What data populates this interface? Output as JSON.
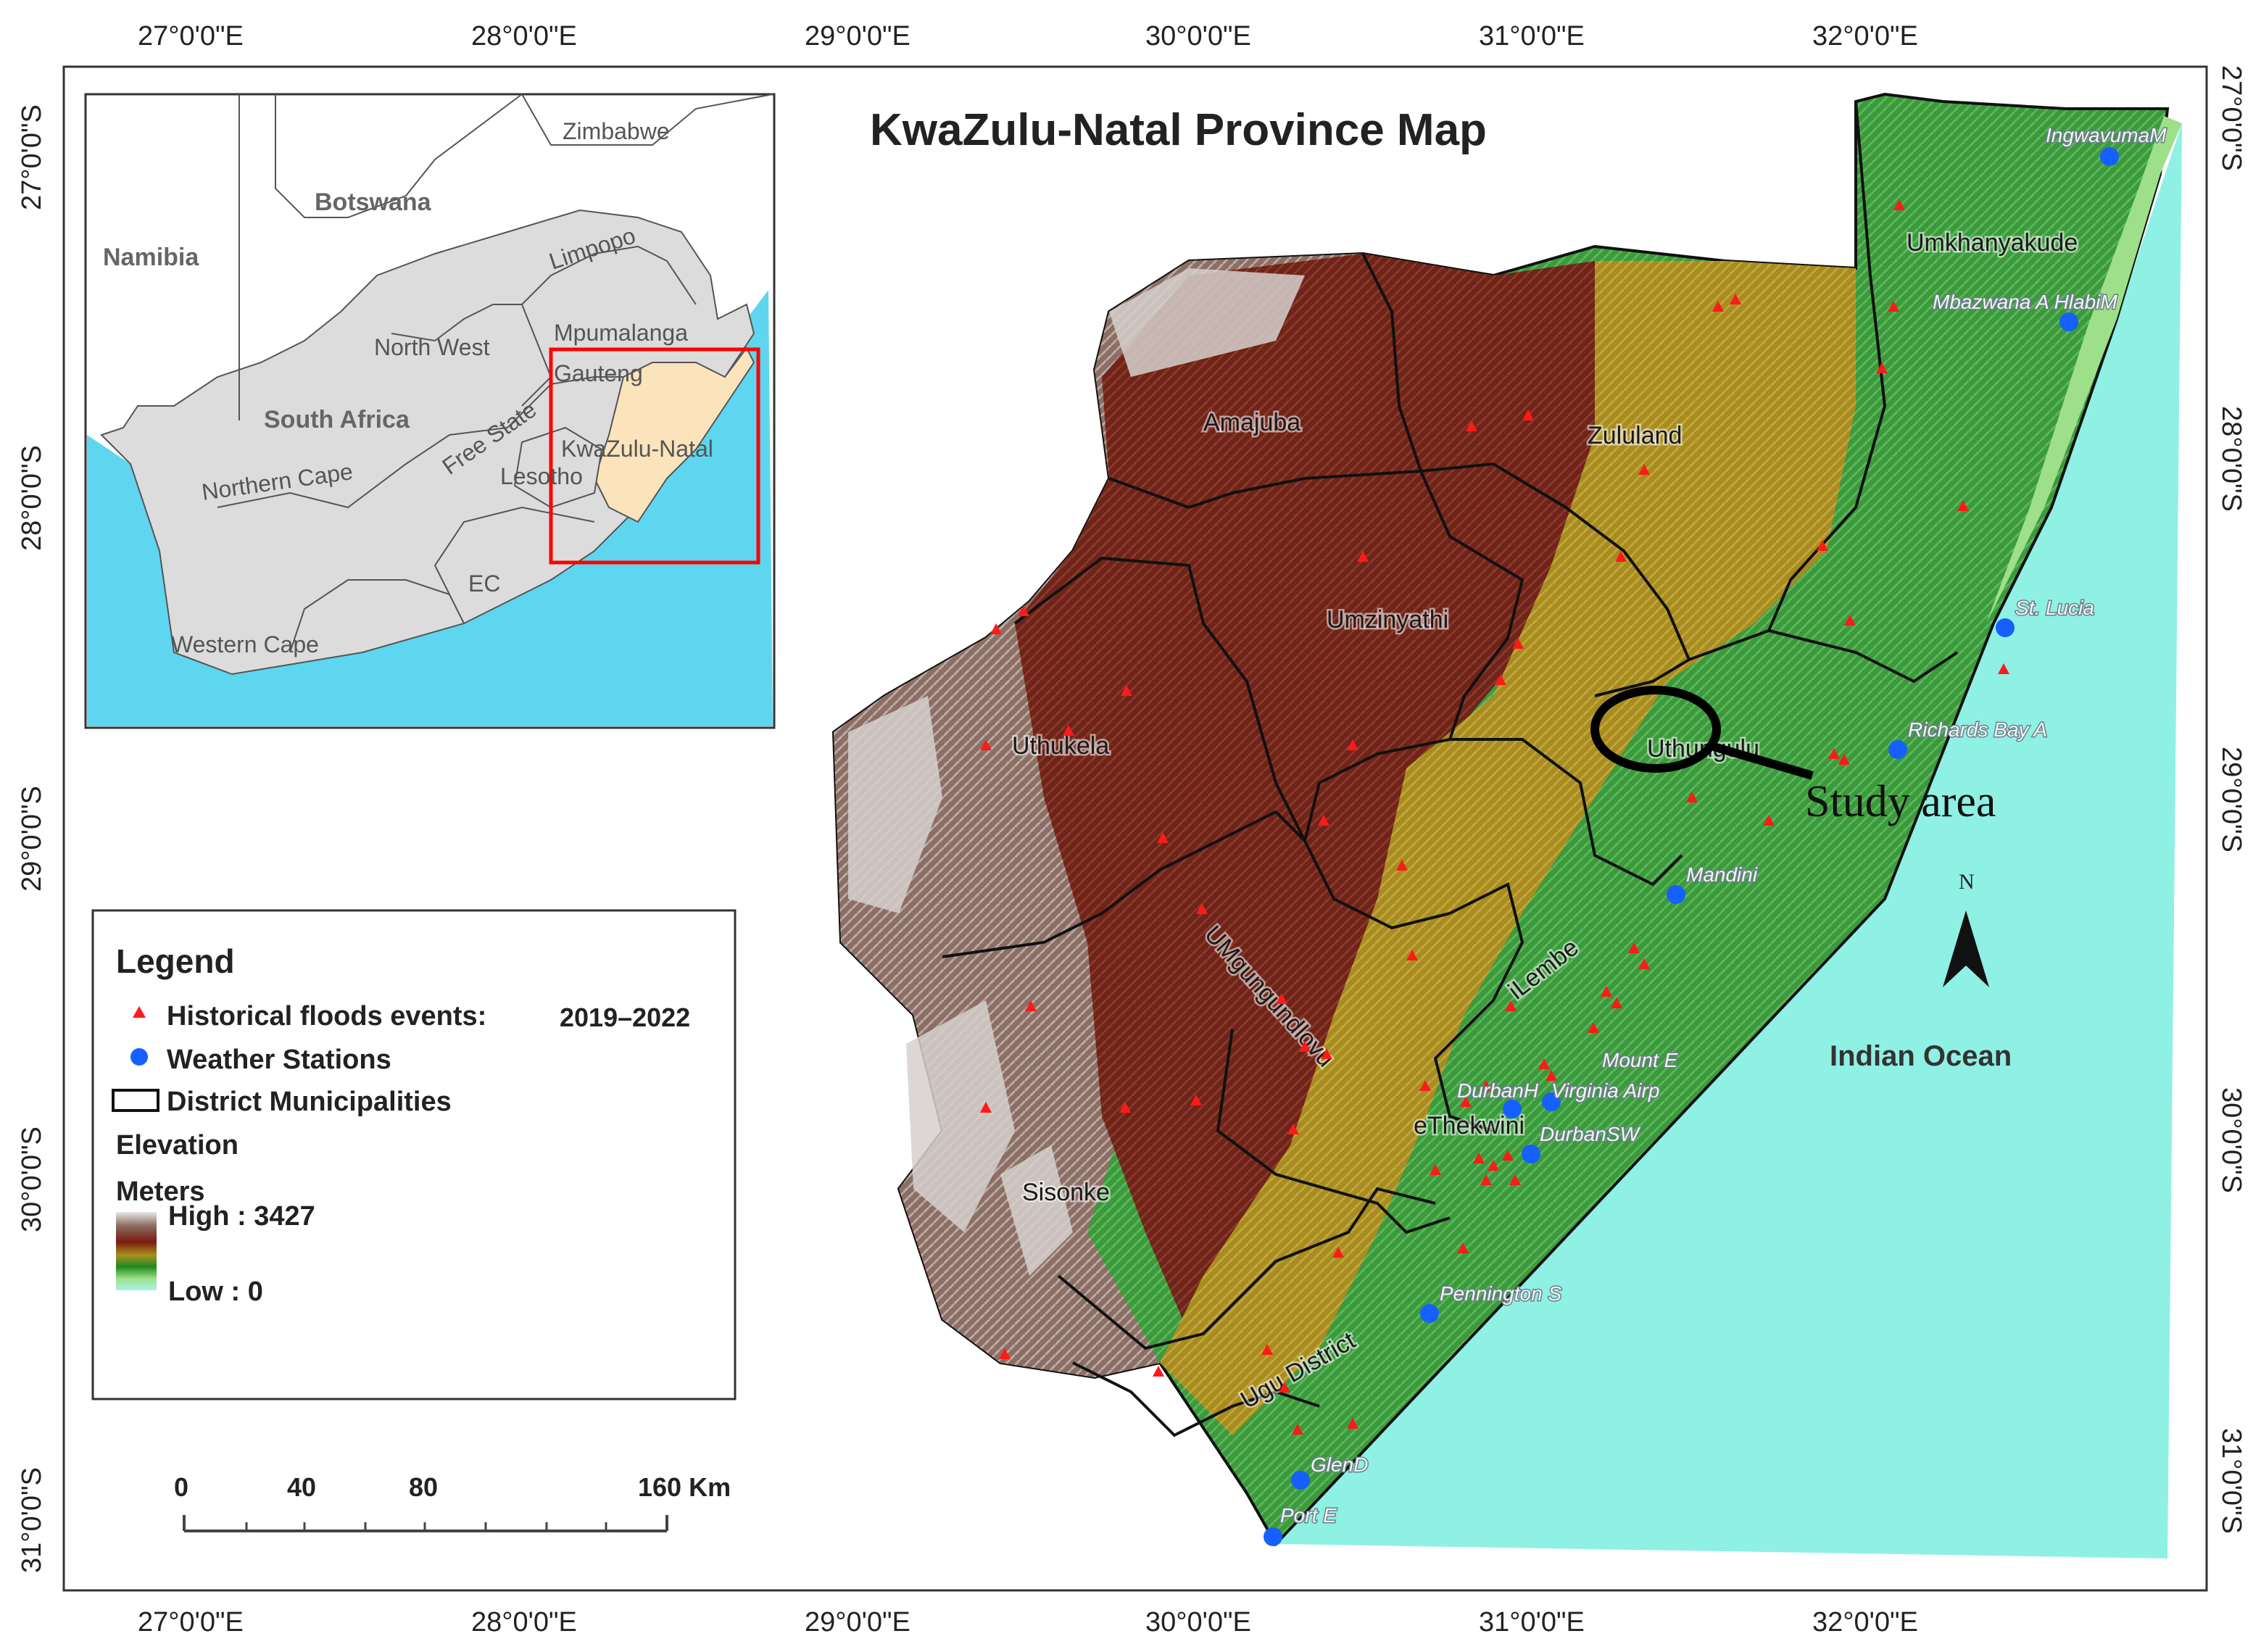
{
  "title": "KwaZulu-Natal Province Map",
  "coords": {
    "lon_top": [
      "27°0'0\"E",
      "28°0'0\"E",
      "29°0'0\"E",
      "30°0'0\"E",
      "31°0'0\"E",
      "32°0'0\"E"
    ],
    "lon_bottom": [
      "27°0'0\"E",
      "28°0'0\"E",
      "29°0'0\"E",
      "30°0'0\"E",
      "31°0'0\"E",
      "32°0'0\"E"
    ],
    "lat_left": [
      "27°0'0\"S",
      "28°0'0\"S",
      "29°0'0\"S",
      "30°0'0\"S",
      "31°0'0\"S"
    ],
    "lat_right": [
      "27°0'0\"S",
      "28°0'0\"S",
      "29°0'0\"S",
      "30°0'0\"S",
      "31°0'0\"S"
    ]
  },
  "districts": [
    "Umkhanyakude",
    "Zululand",
    "Amajuba",
    "Umzinyathi",
    "Uthukela",
    "Uthungulu",
    "UMgungundlovu",
    "iLembe",
    "eThekwini",
    "Sisonke",
    "Ugu District"
  ],
  "weather_stations": [
    "IngwavumaM",
    "Mbazwana A HlabiM",
    "St. Lucia",
    "Richards Bay A",
    "Mandini",
    "Mount E",
    "DurbanH",
    "Virginia Airp",
    "DurbanSW",
    "Pennington S",
    "GlenD",
    "Port E"
  ],
  "ocean_label": "Indian Ocean",
  "north_label": "N",
  "study_area_label": "Study area",
  "inset": {
    "countries": [
      "Zimbabwe",
      "Botswana",
      "Namibia",
      "South Africa",
      "Lesotho"
    ],
    "provinces": [
      "Limpopo",
      "North West",
      "Mpumalanga",
      "Gauteng",
      "Free State",
      "KwaZulu-Natal",
      "Northern Cape",
      "EC",
      "Western Cape"
    ]
  },
  "legend": {
    "title": "Legend",
    "floods_label": "Historical floods events:",
    "floods_years": "2019–2022",
    "stations_label": "Weather Stations",
    "districts_label": "District Municipalities",
    "elevation_label": "Elevation",
    "meters_label": "Meters",
    "high_label": "High : 3427",
    "low_label": "Low : 0"
  },
  "scale_bar": {
    "ticks": [
      "0",
      "40",
      "80",
      "160 Km"
    ]
  },
  "colors": {
    "ocean": "#8ff0e4",
    "inset_ocean": "#5ed6f0",
    "land_grey": "#dcdcdc",
    "kzn_highlight": "#fbe3bc",
    "inset_frame": "#ff0000",
    "flood_marker": "#ff1a1a",
    "station_marker": "#1560ff",
    "elev_high": "#c9c3bf",
    "elev_brown": "#7a5048",
    "elev_darkred": "#731a12",
    "elev_olive": "#a89020",
    "elev_green": "#3fa03f",
    "elev_lightgreen": "#9ee08a"
  }
}
